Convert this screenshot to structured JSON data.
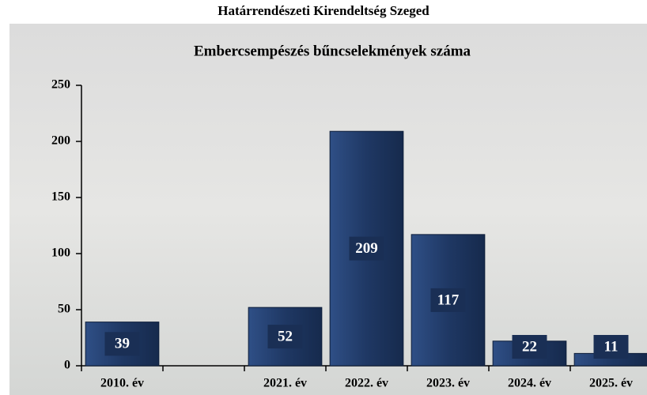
{
  "chart_data": {
    "type": "bar",
    "title": "Határrendészeti Kirendeltség Szeged",
    "subtitle": "Embercsempészés bűncselekmények száma",
    "categories": [
      "2010. év",
      null,
      "2021. év",
      "2022. év",
      "2023. év",
      "2024. év",
      "2025. év"
    ],
    "values": [
      39,
      null,
      52,
      209,
      117,
      22,
      11
    ],
    "color": "#1f3864",
    "ylim": [
      0,
      250
    ],
    "yticks": [
      0,
      50,
      100,
      150,
      200,
      250
    ],
    "grid": false
  }
}
